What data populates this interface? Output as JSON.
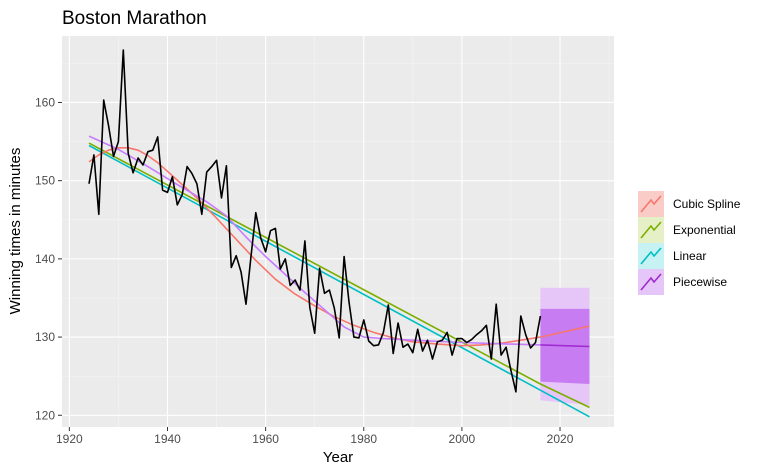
{
  "chart_data": {
    "type": "line",
    "title": "Boston Marathon",
    "xlabel": "Year",
    "ylabel": "Winning times in minutes",
    "xlim": [
      1918.5,
      2031
    ],
    "ylim": [
      118.5,
      168.5
    ],
    "xticks": [
      1920,
      1940,
      1960,
      1980,
      2000,
      2020
    ],
    "yticks": [
      120,
      130,
      140,
      150,
      160
    ],
    "grid": true,
    "legend_position": "right",
    "observed": {
      "x": [
        1924,
        1925,
        1926,
        1927,
        1928,
        1929,
        1930,
        1931,
        1932,
        1933,
        1934,
        1935,
        1936,
        1937,
        1938,
        1939,
        1940,
        1941,
        1942,
        1943,
        1944,
        1945,
        1946,
        1947,
        1948,
        1949,
        1950,
        1951,
        1952,
        1953,
        1954,
        1955,
        1956,
        1957,
        1958,
        1959,
        1960,
        1961,
        1962,
        1963,
        1964,
        1965,
        1966,
        1967,
        1968,
        1969,
        1970,
        1971,
        1972,
        1973,
        1974,
        1975,
        1976,
        1977,
        1978,
        1979,
        1980,
        1981,
        1982,
        1983,
        1984,
        1985,
        1986,
        1987,
        1988,
        1989,
        1990,
        1991,
        1992,
        1993,
        1994,
        1995,
        1996,
        1997,
        1998,
        1999,
        2000,
        2001,
        2002,
        2003,
        2004,
        2005,
        2006,
        2007,
        2008,
        2009,
        2010,
        2011,
        2012,
        2013,
        2014,
        2015,
        2016
      ],
      "y": [
        149.6,
        153.3,
        145.7,
        160.3,
        157.0,
        153.1,
        155.0,
        166.7,
        153.5,
        151.0,
        152.9,
        152.0,
        153.7,
        153.9,
        155.6,
        148.8,
        148.5,
        150.5,
        146.9,
        148.2,
        151.8,
        150.9,
        149.6,
        145.7,
        151.1,
        151.8,
        152.6,
        147.8,
        151.9,
        138.9,
        140.4,
        138.3,
        134.2,
        140.2,
        145.9,
        142.7,
        140.9,
        143.6,
        143.9,
        138.7,
        140.0,
        136.6,
        137.3,
        136.0,
        142.3,
        133.8,
        130.5,
        138.8,
        135.6,
        136.0,
        133.7,
        129.9,
        140.3,
        134.5,
        130.0,
        129.9,
        132.2,
        129.5,
        128.9,
        129.0,
        130.6,
        134.1,
        127.9,
        131.8,
        128.7,
        129.1,
        128.0,
        131.0,
        128.2,
        129.6,
        127.2,
        129.4,
        129.6,
        130.6,
        127.7,
        129.8,
        129.8,
        129.3,
        129.7,
        130.3,
        130.8,
        131.5,
        127.2,
        134.2,
        127.7,
        128.7,
        125.7,
        123.0,
        132.7,
        130.3,
        128.6,
        129.3,
        132.7
      ]
    },
    "series": [
      {
        "name": "Cubic Spline",
        "color": "#F8766D",
        "x": [
          1924,
          1926,
          1928,
          1930,
          1932,
          1934,
          1936,
          1938,
          1940,
          1943,
          1946,
          1950,
          1954,
          1958,
          1962,
          1966,
          1970,
          1974,
          1978,
          1982,
          1986,
          1990,
          1995,
          2000,
          2004,
          2008,
          2012,
          2016
        ],
        "y": [
          152.4,
          153.3,
          153.9,
          154.2,
          154.2,
          153.9,
          153.2,
          152.3,
          151.2,
          149.5,
          147.8,
          145.2,
          142.5,
          139.8,
          137.4,
          135.5,
          134.0,
          132.6,
          131.5,
          130.6,
          129.9,
          129.4,
          129.1,
          128.9,
          129.0,
          129.2,
          129.6,
          130.0
        ],
        "forecast_x": [
          2016,
          2026
        ],
        "forecast_y": [
          130.0,
          131.4
        ]
      },
      {
        "name": "Exponential",
        "color": "#7CAE00",
        "x": [
          1924,
          2016
        ],
        "y": [
          154.8,
          124.0
        ],
        "forecast_x": [
          2016,
          2026
        ],
        "forecast_y": [
          124.0,
          121.0
        ]
      },
      {
        "name": "Linear",
        "color": "#00BFC4",
        "x": [
          1924,
          2016
        ],
        "y": [
          154.5,
          123.2
        ],
        "forecast_x": [
          2016,
          2026
        ],
        "forecast_y": [
          123.2,
          119.8
        ]
      },
      {
        "name": "Piecewise",
        "color": "#C77CFF",
        "forecast_color": "#9F2BD0",
        "x": [
          1924,
          1930,
          1936,
          1942,
          1948,
          1952,
          1956,
          1960,
          1964,
          1968,
          1972,
          1976,
          1980,
          1984,
          1990,
          2000,
          2010,
          2016
        ],
        "y": [
          155.7,
          154.0,
          151.8,
          149.5,
          147.3,
          145.5,
          142.8,
          140.3,
          138.0,
          135.7,
          133.5,
          131.3,
          130.0,
          129.8,
          129.6,
          129.3,
          129.1,
          129.0
        ],
        "forecast_x": [
          2016,
          2026
        ],
        "forecast_y": [
          129.0,
          128.8
        ]
      }
    ],
    "prediction_intervals": [
      {
        "x": [
          2016,
          2026
        ],
        "lower_80": [
          124.3,
          124.0
        ],
        "upper_80": [
          133.6,
          133.6
        ],
        "lower_95": [
          121.9,
          121.3
        ],
        "upper_95": [
          136.3,
          136.3
        ]
      }
    ]
  }
}
